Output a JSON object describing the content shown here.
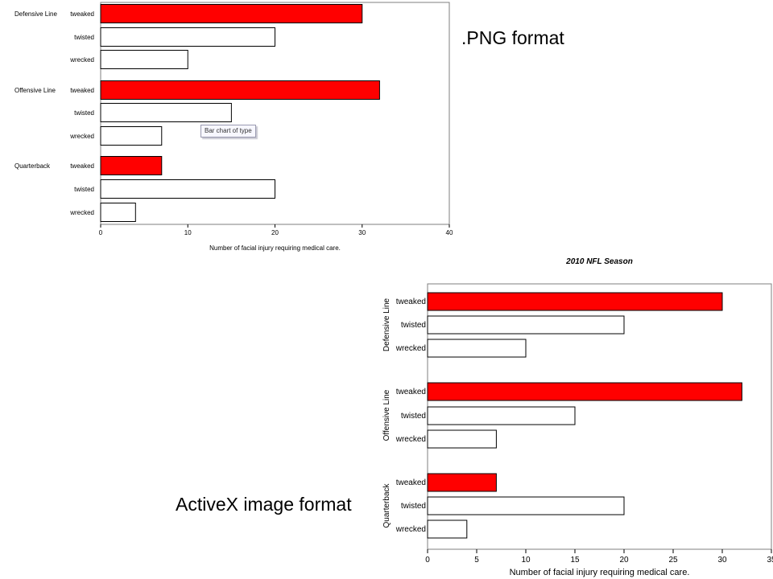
{
  "captions": {
    "png": ".PNG format",
    "activex": "ActiveX image format"
  },
  "tooltip": "Bar chart of type",
  "chart_data": [
    {
      "type": "bar",
      "orientation": "horizontal",
      "groups": [
        "Defensive Line",
        "Offensive Line",
        "Quarterback"
      ],
      "categories": [
        "tweaked",
        "twisted",
        "wrecked"
      ],
      "values": [
        [
          30,
          20,
          10
        ],
        [
          32,
          15,
          7
        ],
        [
          7,
          20,
          4
        ]
      ],
      "highlight_category": "tweaked",
      "highlight_color": "#ff0000",
      "bar_color": "#ffffff",
      "xlabel": "Number of facial injury requiring medical care.",
      "xlim": [
        0,
        40
      ],
      "xticks": [
        0,
        10,
        20,
        30,
        40
      ],
      "grid": false
    },
    {
      "type": "bar",
      "orientation": "horizontal",
      "title": "2010 NFL Season",
      "groups": [
        "Defensive Line",
        "Offensive Line",
        "Quarterback"
      ],
      "categories": [
        "tweaked",
        "twisted",
        "wrecked"
      ],
      "values": [
        [
          30,
          20,
          10
        ],
        [
          32,
          15,
          7
        ],
        [
          7,
          20,
          4
        ]
      ],
      "highlight_category": "tweaked",
      "highlight_color": "#ff0000",
      "bar_color": "#ffffff",
      "xlabel": "Number of facial injury requiring medical care.",
      "xlim": [
        0,
        35
      ],
      "xticks": [
        0,
        5,
        10,
        15,
        20,
        25,
        30,
        35
      ],
      "grid": false
    }
  ]
}
